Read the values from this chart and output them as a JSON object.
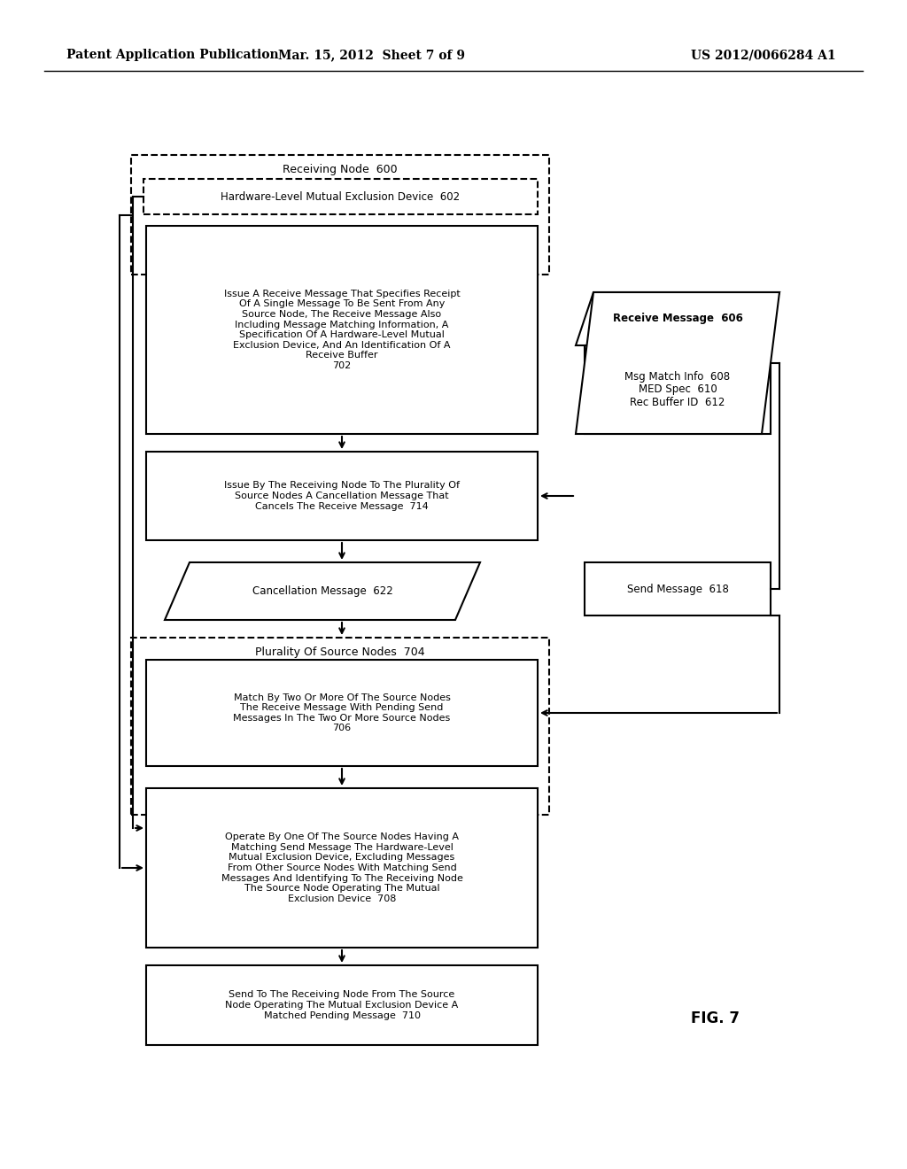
{
  "bg_color": "#ffffff",
  "header_left": "Patent Application Publication",
  "header_mid": "Mar. 15, 2012  Sheet 7 of 9",
  "header_right": "US 2012/0066284 A1",
  "fig_label": "FIG. 7"
}
